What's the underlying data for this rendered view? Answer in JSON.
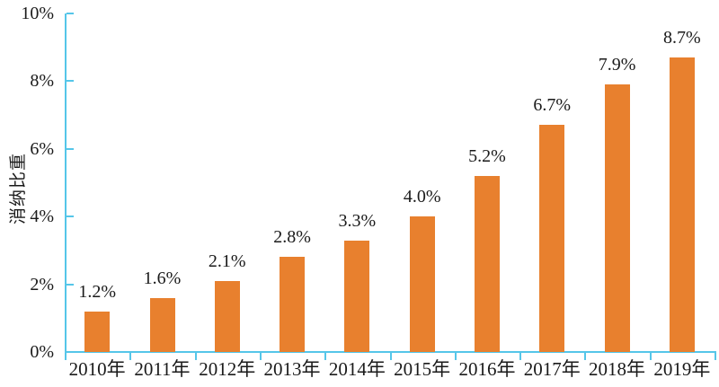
{
  "chart_data": {
    "type": "bar",
    "title": "",
    "xlabel": "",
    "ylabel": "消纳比重",
    "categories": [
      "2010年",
      "2011年",
      "2012年",
      "2013年",
      "2014年",
      "2015年",
      "2016年",
      "2017年",
      "2018年",
      "2019年"
    ],
    "values": [
      1.2,
      1.6,
      2.1,
      2.8,
      3.3,
      4.0,
      5.2,
      6.7,
      7.9,
      8.7
    ],
    "data_labels": [
      "1.2%",
      "1.6%",
      "2.1%",
      "2.8%",
      "3.3%",
      "4.0%",
      "5.2%",
      "6.7%",
      "7.9%",
      "8.7%"
    ],
    "ylim": [
      0,
      10
    ],
    "y_ticks": [
      0,
      2,
      4,
      6,
      8,
      10
    ],
    "y_tick_labels": [
      "0%",
      "2%",
      "4%",
      "6%",
      "8%",
      "10%"
    ],
    "grid": false,
    "legend": false,
    "colors": {
      "bar": "#E8802E",
      "axis": "#55C6E9",
      "text": "#1a1a1a"
    }
  }
}
